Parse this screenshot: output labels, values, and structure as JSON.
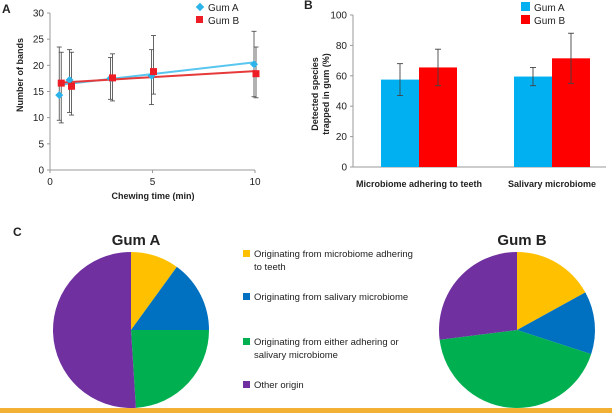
{
  "colors": {
    "gumA": "#2bb3ea",
    "gumB": "#ee1c25",
    "lineA": "#58c6ee",
    "lineB": "#e63a3a",
    "barA": "#00b0f0",
    "barB": "#ff0000",
    "error": "#555555",
    "axis": "#9a9a9a",
    "pieYellow": "#ffc000",
    "pieBlue": "#0070c0",
    "pieGreen": "#00b050",
    "piePurple": "#7030a0",
    "bottomBar": "#f2b134"
  },
  "chart_data": [
    {
      "panel": "A",
      "type": "scatter",
      "xlabel": "Chewing time (min)",
      "ylabel": "Number of bands",
      "xlim": [
        0,
        10
      ],
      "ylim": [
        0,
        30
      ],
      "xticks": [
        "0",
        "5",
        "10"
      ],
      "yticks": [
        "0",
        "5",
        "10",
        "15",
        "20",
        "25",
        "30"
      ],
      "series": [
        {
          "name": "Gum A",
          "marker": "diamond",
          "x": [
            0.5,
            1,
            3,
            5,
            10
          ],
          "y": [
            14.3,
            17.2,
            17.5,
            18.0,
            20.2
          ],
          "err_low": [
            9.5,
            11.0,
            13.5,
            12.5,
            14.0
          ],
          "err_high": [
            23.5,
            23.0,
            21.5,
            23.0,
            26.5
          ],
          "trend": [
            [
              0.5,
              16.3
            ],
            [
              10,
              20.6
            ]
          ]
        },
        {
          "name": "Gum B",
          "marker": "square",
          "x": [
            0.5,
            1,
            3,
            5,
            10
          ],
          "y": [
            16.6,
            16.0,
            17.6,
            18.8,
            18.4
          ],
          "err_low": [
            9.0,
            10.5,
            13.2,
            14.5,
            13.8
          ],
          "err_high": [
            22.5,
            22.5,
            22.2,
            25.7,
            23.5
          ],
          "trend": [
            [
              0.5,
              16.7
            ],
            [
              10,
              18.9
            ]
          ]
        }
      ]
    },
    {
      "panel": "B",
      "type": "bar",
      "ylabel": "Detected species trapped in gum (%)",
      "ylim": [
        0,
        100
      ],
      "yticks": [
        "0",
        "20",
        "40",
        "60",
        "80",
        "100"
      ],
      "categories": [
        "Microbiome adhering to teeth",
        "Salivary microbiome"
      ],
      "series": [
        {
          "name": "Gum A",
          "values": [
            57.5,
            59.5
          ],
          "err": [
            10.5,
            6.0
          ]
        },
        {
          "name": "Gum B",
          "values": [
            65.5,
            71.5
          ],
          "err": [
            12.0,
            16.5
          ]
        }
      ]
    },
    {
      "panel": "C",
      "type": "pie",
      "title": "Gum A",
      "labels": [
        "Originating from microbiome adhering to teeth",
        "Originating from salivary microbiome",
        "Originating from either adhering or salivary microbiome",
        "Other origin"
      ],
      "values": [
        10,
        15,
        24,
        51
      ]
    },
    {
      "panel": "C",
      "type": "pie",
      "title": "Gum B",
      "labels": [
        "Originating from microbiome adhering to teeth",
        "Originating from salivary microbiome",
        "Originating from either adhering or salivary microbiome",
        "Other origin"
      ],
      "values": [
        17,
        13,
        43,
        27
      ]
    }
  ],
  "panel_c_label": "C",
  "legend_c": [
    {
      "label": "Originating from microbiome adhering",
      "label2": "to teeth",
      "color": "#ffc000"
    },
    {
      "label": "Originating from salivary microbiome",
      "label2": "",
      "color": "#0070c0"
    },
    {
      "label": "Originating from either adhering or",
      "label2": "salivary microbiome",
      "color": "#00b050"
    },
    {
      "label": "Other origin",
      "label2": "",
      "color": "#7030a0"
    }
  ],
  "ylabel_b_lines": [
    "Detected species",
    "trapped in gum (%)"
  ]
}
